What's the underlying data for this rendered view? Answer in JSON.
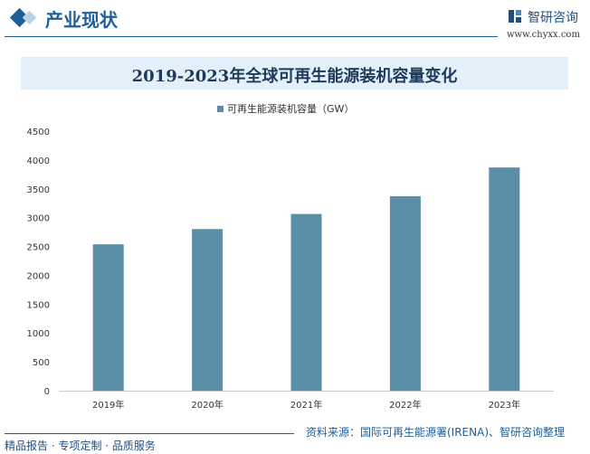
{
  "header": {
    "section_title": "产业现状",
    "logo_text": "智研咨询",
    "url": "www.chyxx.com"
  },
  "chart_data": {
    "type": "bar",
    "title": "2019-2023年全球可再生能源装机容量变化",
    "categories": [
      "2019年",
      "2020年",
      "2021年",
      "2022年",
      "2023年"
    ],
    "series": [
      {
        "name": "可再生能源装机容量（GW）",
        "values": [
          2537,
          2802,
          3064,
          3372,
          3870
        ]
      }
    ],
    "ylim": [
      0,
      4500
    ],
    "yticks": [
      0,
      500,
      1000,
      1500,
      2000,
      2500,
      3000,
      3500,
      4000,
      4500
    ],
    "legend": "top",
    "grid": false,
    "bar_color": "#5b8fa8"
  },
  "footer": {
    "source": "资料来源：国际可再生能源署(IRENA)、智研咨询整理",
    "tagline": "精品报告 · 专项定制 · 品质服务"
  }
}
